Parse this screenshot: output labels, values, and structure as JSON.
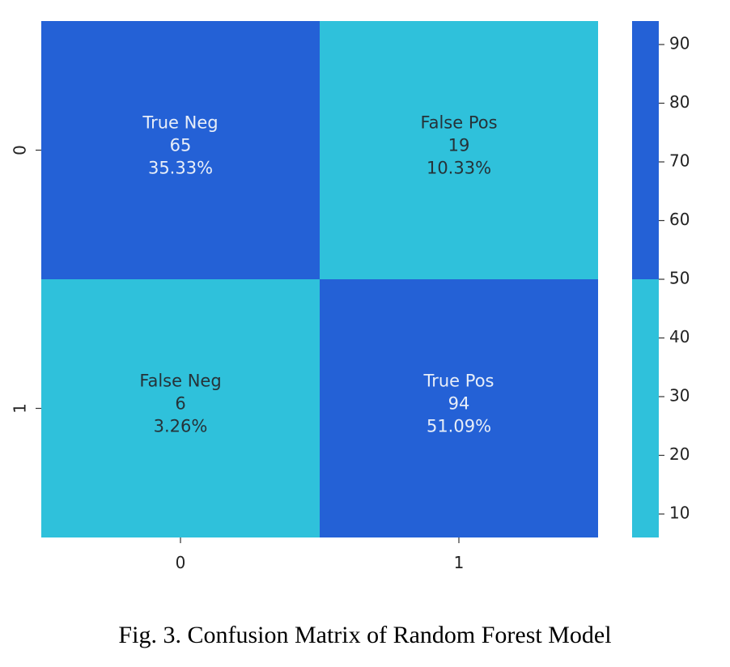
{
  "chart_data": {
    "type": "heatmap",
    "rows": [
      "0",
      "1"
    ],
    "columns": [
      "0",
      "1"
    ],
    "cells": [
      [
        {
          "label": "True Neg",
          "count": "65",
          "percent": "35.33%",
          "value": 65
        },
        {
          "label": "False Pos",
          "count": "19",
          "percent": "10.33%",
          "value": 19
        }
      ],
      [
        {
          "label": "False Neg",
          "count": "6",
          "percent": "3.26%",
          "value": 6
        },
        {
          "label": "True Pos",
          "count": "94",
          "percent": "51.09%",
          "value": 94
        }
      ]
    ],
    "colorbar": {
      "range": [
        6,
        94
      ],
      "threshold": 50,
      "ticks": [
        10,
        20,
        30,
        40,
        50,
        60,
        70,
        80,
        90
      ]
    },
    "colors": {
      "high": "#2461d6",
      "low": "#2fc1db",
      "text_on_high": "#e8eef8",
      "text_on_low": "#263238"
    },
    "xlabel": "",
    "ylabel": "",
    "title": ""
  },
  "caption": "Fig. 3. Confusion Matrix of Random Forest Model"
}
